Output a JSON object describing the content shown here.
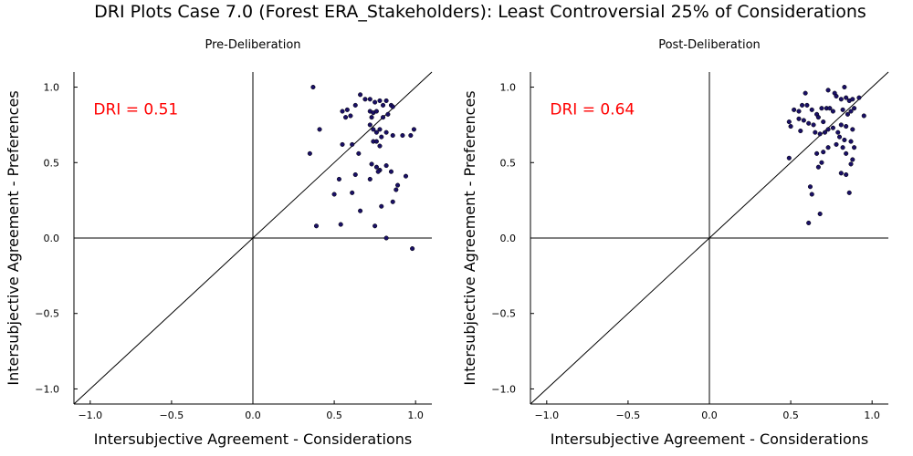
{
  "title": "DRI Plots Case 7.0 (Forest ERA_Stakeholders): Least Controversial 25% of Considerations",
  "colors": {
    "point": "#1a1066",
    "axis": "#000000",
    "annotation": "#ff0000"
  },
  "chart_data": [
    {
      "type": "scatter",
      "title": "Pre-Deliberation",
      "xlabel": "Intersubjective Agreement - Considerations",
      "ylabel": "Intersubjective Agreement - Preferences",
      "xlim": [
        -1.1,
        1.1
      ],
      "ylim": [
        -1.1,
        1.1
      ],
      "xticks": [
        "−1.0",
        "−0.5",
        "0.0",
        "0.5",
        "1.0"
      ],
      "yticks": [
        "−1.0",
        "−0.5",
        "0.0",
        "0.5",
        "1.0"
      ],
      "tick_values": [
        -1.0,
        -0.5,
        0.0,
        0.5,
        1.0
      ],
      "grid": false,
      "annotation": "DRI = 0.51",
      "points": [
        [
          0.37,
          1.0
        ],
        [
          0.66,
          0.95
        ],
        [
          0.69,
          0.92
        ],
        [
          0.72,
          0.92
        ],
        [
          0.75,
          0.9
        ],
        [
          0.78,
          0.91
        ],
        [
          0.8,
          0.88
        ],
        [
          0.82,
          0.91
        ],
        [
          0.85,
          0.88
        ],
        [
          0.86,
          0.87
        ],
        [
          0.55,
          0.84
        ],
        [
          0.58,
          0.85
        ],
        [
          0.6,
          0.81
        ],
        [
          0.57,
          0.8
        ],
        [
          0.63,
          0.88
        ],
        [
          0.72,
          0.84
        ],
        [
          0.74,
          0.83
        ],
        [
          0.76,
          0.84
        ],
        [
          0.8,
          0.8
        ],
        [
          0.83,
          0.82
        ],
        [
          0.73,
          0.8
        ],
        [
          0.41,
          0.72
        ],
        [
          0.72,
          0.75
        ],
        [
          0.74,
          0.72
        ],
        [
          0.76,
          0.7
        ],
        [
          0.78,
          0.72
        ],
        [
          0.82,
          0.7
        ],
        [
          0.86,
          0.68
        ],
        [
          0.79,
          0.67
        ],
        [
          0.74,
          0.64
        ],
        [
          0.76,
          0.64
        ],
        [
          0.78,
          0.61
        ],
        [
          0.55,
          0.62
        ],
        [
          0.61,
          0.62
        ],
        [
          0.92,
          0.68
        ],
        [
          0.97,
          0.68
        ],
        [
          0.99,
          0.72
        ],
        [
          0.35,
          0.56
        ],
        [
          0.65,
          0.56
        ],
        [
          0.73,
          0.49
        ],
        [
          0.76,
          0.47
        ],
        [
          0.78,
          0.45
        ],
        [
          0.82,
          0.48
        ],
        [
          0.63,
          0.42
        ],
        [
          0.77,
          0.44
        ],
        [
          0.53,
          0.39
        ],
        [
          0.72,
          0.39
        ],
        [
          0.85,
          0.44
        ],
        [
          0.88,
          0.32
        ],
        [
          0.89,
          0.35
        ],
        [
          0.94,
          0.41
        ],
        [
          0.5,
          0.29
        ],
        [
          0.61,
          0.3
        ],
        [
          0.66,
          0.18
        ],
        [
          0.79,
          0.21
        ],
        [
          0.86,
          0.24
        ],
        [
          0.39,
          0.08
        ],
        [
          0.54,
          0.09
        ],
        [
          0.75,
          0.08
        ],
        [
          0.82,
          0.0
        ],
        [
          0.98,
          -0.07
        ]
      ]
    },
    {
      "type": "scatter",
      "title": "Post-Deliberation",
      "xlabel": "Intersubjective Agreement - Considerations",
      "ylabel": "Intersubjective Agreement - Preferences",
      "xlim": [
        -1.1,
        1.1
      ],
      "ylim": [
        -1.1,
        1.1
      ],
      "xticks": [
        "−1.0",
        "−0.5",
        "0.0",
        "0.5",
        "1.0"
      ],
      "yticks": [
        "−1.0",
        "−0.5",
        "0.0",
        "0.5",
        "1.0"
      ],
      "tick_values": [
        -1.0,
        -0.5,
        0.0,
        0.5,
        1.0
      ],
      "grid": false,
      "annotation": "DRI = 0.64",
      "points": [
        [
          0.83,
          1.0
        ],
        [
          0.59,
          0.96
        ],
        [
          0.73,
          0.98
        ],
        [
          0.77,
          0.96
        ],
        [
          0.78,
          0.94
        ],
        [
          0.81,
          0.92
        ],
        [
          0.84,
          0.93
        ],
        [
          0.86,
          0.91
        ],
        [
          0.88,
          0.92
        ],
        [
          0.92,
          0.93
        ],
        [
          0.57,
          0.88
        ],
        [
          0.6,
          0.88
        ],
        [
          0.52,
          0.85
        ],
        [
          0.55,
          0.84
        ],
        [
          0.63,
          0.85
        ],
        [
          0.66,
          0.82
        ],
        [
          0.69,
          0.86
        ],
        [
          0.72,
          0.86
        ],
        [
          0.74,
          0.86
        ],
        [
          0.76,
          0.84
        ],
        [
          0.82,
          0.85
        ],
        [
          0.85,
          0.82
        ],
        [
          0.87,
          0.84
        ],
        [
          0.89,
          0.86
        ],
        [
          0.95,
          0.81
        ],
        [
          0.49,
          0.77
        ],
        [
          0.5,
          0.74
        ],
        [
          0.55,
          0.79
        ],
        [
          0.58,
          0.78
        ],
        [
          0.61,
          0.76
        ],
        [
          0.64,
          0.75
        ],
        [
          0.67,
          0.8
        ],
        [
          0.7,
          0.77
        ],
        [
          0.73,
          0.72
        ],
        [
          0.76,
          0.73
        ],
        [
          0.79,
          0.7
        ],
        [
          0.81,
          0.75
        ],
        [
          0.84,
          0.74
        ],
        [
          0.88,
          0.72
        ],
        [
          0.56,
          0.71
        ],
        [
          0.65,
          0.7
        ],
        [
          0.68,
          0.69
        ],
        [
          0.71,
          0.7
        ],
        [
          0.8,
          0.67
        ],
        [
          0.83,
          0.65
        ],
        [
          0.87,
          0.64
        ],
        [
          0.78,
          0.62
        ],
        [
          0.73,
          0.6
        ],
        [
          0.82,
          0.6
        ],
        [
          0.89,
          0.6
        ],
        [
          0.66,
          0.56
        ],
        [
          0.7,
          0.57
        ],
        [
          0.84,
          0.56
        ],
        [
          0.49,
          0.53
        ],
        [
          0.69,
          0.5
        ],
        [
          0.67,
          0.47
        ],
        [
          0.88,
          0.52
        ],
        [
          0.87,
          0.49
        ],
        [
          0.81,
          0.43
        ],
        [
          0.84,
          0.42
        ],
        [
          0.62,
          0.34
        ],
        [
          0.63,
          0.29
        ],
        [
          0.86,
          0.3
        ],
        [
          0.68,
          0.16
        ],
        [
          0.61,
          0.1
        ]
      ]
    }
  ]
}
